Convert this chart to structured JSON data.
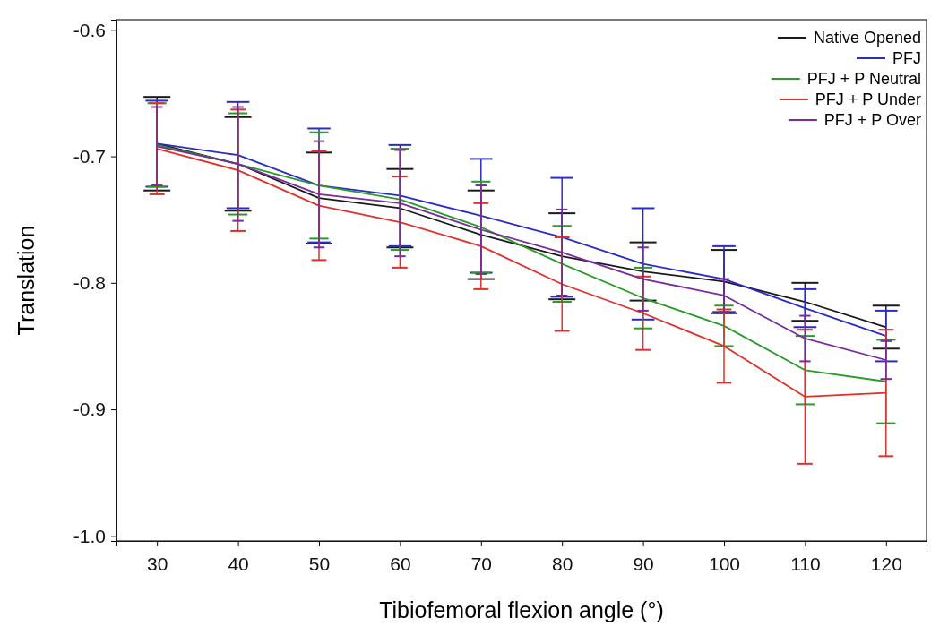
{
  "chart_data": {
    "type": "line",
    "xlabel": "Tibiofemoral flexion angle (°)",
    "ylabel": "Translation",
    "x": [
      30,
      40,
      50,
      60,
      70,
      80,
      90,
      100,
      110,
      120
    ],
    "xlim": [
      25,
      125
    ],
    "xticks": [
      30,
      40,
      50,
      60,
      70,
      80,
      90,
      100,
      110,
      120
    ],
    "ylim": [
      -1.004,
      -0.592
    ],
    "yticks": [
      {
        "value": -1.0,
        "label": "-1.0"
      },
      -0.9,
      -0.8,
      -0.7,
      -0.6
    ],
    "legend": "top right",
    "grid": false,
    "marker": "none",
    "line_style": "solid",
    "series": [
      {
        "name": "Native Opened",
        "color": "#1a1a1a",
        "values": [
          -0.69,
          -0.706,
          -0.733,
          -0.741,
          -0.762,
          -0.779,
          -0.791,
          -0.799,
          -0.815,
          -0.835
        ],
        "errors": [
          0.037,
          0.037,
          0.036,
          0.031,
          0.035,
          0.034,
          0.023,
          0.025,
          0.015,
          0.017
        ]
      },
      {
        "name": "PFJ",
        "color": "#2b2bc8",
        "values": [
          -0.69,
          -0.699,
          -0.723,
          -0.731,
          -0.747,
          -0.764,
          -0.785,
          -0.797,
          -0.82,
          -0.842
        ],
        "errors": [
          0.034,
          0.042,
          0.045,
          0.04,
          0.045,
          0.047,
          0.044,
          0.026,
          0.015,
          0.02
        ]
      },
      {
        "name": "PFJ + P Neutral",
        "color": "#2a9a2a",
        "values": [
          -0.691,
          -0.706,
          -0.723,
          -0.734,
          -0.756,
          -0.785,
          -0.812,
          -0.834,
          -0.869,
          -0.878
        ],
        "errors": [
          0.033,
          0.04,
          0.042,
          0.04,
          0.036,
          0.03,
          0.024,
          0.016,
          0.027,
          0.033
        ]
      },
      {
        "name": "PFJ + P Under",
        "color": "#e0302a",
        "values": [
          -0.694,
          -0.711,
          -0.739,
          -0.752,
          -0.771,
          -0.801,
          -0.824,
          -0.85,
          -0.89,
          -0.887
        ],
        "errors": [
          0.036,
          0.048,
          0.043,
          0.036,
          0.034,
          0.037,
          0.029,
          0.029,
          0.053,
          0.05
        ]
      },
      {
        "name": "PFJ + P Over",
        "color": "#7a2a9a",
        "values": [
          -0.692,
          -0.706,
          -0.73,
          -0.737,
          -0.758,
          -0.776,
          -0.797,
          -0.81,
          -0.844,
          -0.861
        ],
        "errors": [
          0.031,
          0.045,
          0.042,
          0.042,
          0.035,
          0.034,
          0.025,
          0.013,
          0.018,
          0.015
        ]
      }
    ]
  }
}
